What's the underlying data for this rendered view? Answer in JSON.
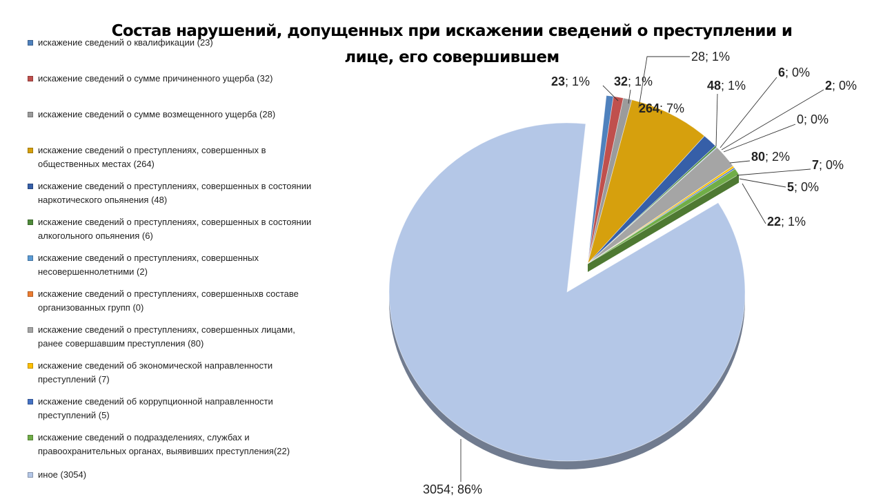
{
  "chart_data": {
    "type": "pie",
    "title": "Состав нарушений, допущенных при искажении сведений о преступлении и лице, его совершившем",
    "legend_position": "left",
    "exploded_3d": true,
    "slices": [
      {
        "label": "искажение сведений о квалификации (23)",
        "value": 23,
        "percent": "1%",
        "color": "#4f81bd",
        "value_bold": true
      },
      {
        "label": "искажение сведений о сумме причиненного ущерба (32)",
        "value": 32,
        "percent": "1%",
        "color": "#c0504d",
        "value_bold": true
      },
      {
        "label": "искажение сведений о сумме возмещенного ущерба (28)",
        "value": 28,
        "percent": "1%",
        "color": "#9b9b9b",
        "value_bold": false
      },
      {
        "label": "искажение сведений о преступлениях, совершенных в общественных местах (264)",
        "value": 264,
        "percent": "7%",
        "color": "#d6a00d",
        "value_bold": true
      },
      {
        "label": "искажение сведений о преступлениях, совершенных в состоянии наркотического опьянения (48)",
        "value": 48,
        "percent": "1%",
        "color": "#365fa8",
        "value_bold": true
      },
      {
        "label": "искажение сведений о преступлениях, совершенных в состоянии алкогольного опьянения (6)",
        "value": 6,
        "percent": "0%",
        "color": "#4e8a3a",
        "value_bold": true
      },
      {
        "label": "искажение сведений о преступлениях, совершенных несовершеннолетними (2)",
        "value": 2,
        "percent": "0%",
        "color": "#5b9bd5",
        "value_bold": true
      },
      {
        "label": "искажение сведений о преступлениях, совершенныхв составе организованных групп (0)",
        "value": 0,
        "percent": "0%",
        "color": "#ed7d31",
        "value_bold": false
      },
      {
        "label": "искажение сведений о преступлениях, совершенных лицами, ранее совершавшим преступления (80)",
        "value": 80,
        "percent": "2%",
        "color": "#a5a5a5",
        "value_bold": true
      },
      {
        "label": "искажение сведений об экономической направленности преступлений (7)",
        "value": 7,
        "percent": "0%",
        "color": "#ffc000",
        "value_bold": true
      },
      {
        "label": "искажение сведений об коррупционной направленности преступлений (5)",
        "value": 5,
        "percent": "0%",
        "color": "#4472c4",
        "value_bold": true
      },
      {
        "label": "искажение сведений о подразделениях, службах и правоохранительных органах, выявивших преступления(22)",
        "value": 22,
        "percent": "1%",
        "color": "#70ad47",
        "value_bold": true
      },
      {
        "label": "иное (3054)",
        "value": 3054,
        "percent": "86%",
        "color": "#b4c7e7",
        "value_bold": false
      }
    ]
  }
}
